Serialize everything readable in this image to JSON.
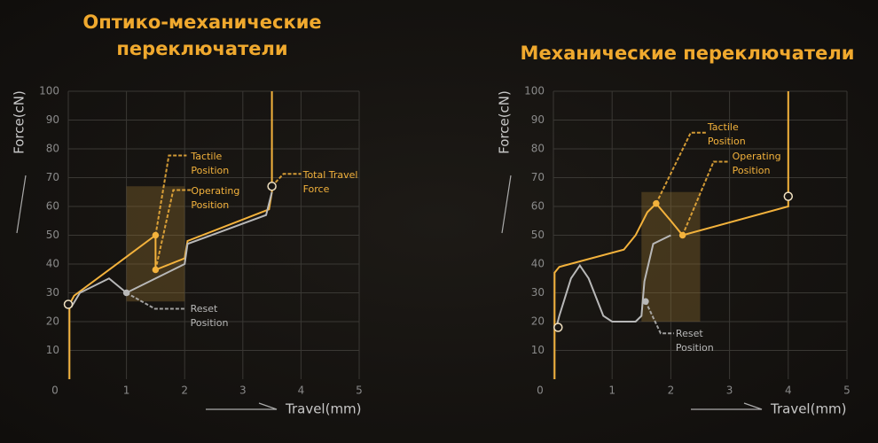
{
  "charts": [
    {
      "type": "line",
      "title": "Оптико-механические переключатели",
      "ylabel": "Force(cN)",
      "xlabel": "Travel(mm)",
      "xlim": [
        0,
        5
      ],
      "ylim": [
        0,
        100
      ],
      "xticks": [
        0,
        1,
        2,
        3,
        4,
        5
      ],
      "yticks": [
        10,
        20,
        30,
        40,
        50,
        60,
        70,
        80,
        90,
        100
      ],
      "grid": true,
      "highlight": {
        "x": [
          1,
          2
        ],
        "y": [
          27,
          67
        ]
      },
      "series": [
        {
          "color": "#f3b23c",
          "x": [
            0.02,
            0.02,
            0.1,
            1.5,
            1.5,
            2.0,
            2.05,
            3.45,
            3.5,
            3.5
          ],
          "values": [
            0,
            26,
            29,
            50,
            38,
            42,
            48,
            59,
            65,
            100
          ]
        },
        {
          "color": "#b8b8b8",
          "x": [
            0.05,
            0.2,
            0.7,
            1.0,
            2.0,
            2.05,
            3.4,
            3.5
          ],
          "values": [
            25,
            30,
            35,
            30,
            40,
            47,
            57,
            65
          ]
        }
      ],
      "annotations": [
        {
          "text": "Tactile Position",
          "x": 1.5,
          "y": 50,
          "marker": "filled",
          "color": "#f3b23c"
        },
        {
          "text": "Operating Position",
          "x": 1.5,
          "y": 38,
          "marker": "filled",
          "color": "#f3b23c"
        },
        {
          "text": "Reset Position",
          "x": 1.0,
          "y": 30,
          "marker": "filled",
          "color": "#b8b8b8"
        },
        {
          "text": "Total Travel Force",
          "x": 3.5,
          "y": 67,
          "marker": "open",
          "color": "#f3b23c"
        },
        {
          "x": 0,
          "y": 26,
          "marker": "open",
          "color": "#f3b23c"
        }
      ]
    },
    {
      "type": "line",
      "title": "Механические переключатели",
      "ylabel": "Force(cN)",
      "xlabel": "Travel(mm)",
      "xlim": [
        0,
        5
      ],
      "ylim": [
        0,
        100
      ],
      "xticks": [
        0,
        1,
        2,
        3,
        4,
        5
      ],
      "yticks": [
        10,
        20,
        30,
        40,
        50,
        60,
        70,
        80,
        90,
        100
      ],
      "grid": true,
      "highlight": {
        "x": [
          1.5,
          2.5
        ],
        "y": [
          20,
          65
        ]
      },
      "series": [
        {
          "color": "#f3b23c",
          "x": [
            0.02,
            0.02,
            0.1,
            1.2,
            1.4,
            1.6,
            1.75,
            2.0,
            2.2,
            4.0,
            4.0
          ],
          "values": [
            0,
            37,
            39,
            45,
            50,
            58,
            61,
            55,
            50,
            60,
            100
          ]
        },
        {
          "color": "#b8b8b8",
          "x": [
            0.05,
            0.1,
            0.3,
            0.45,
            0.6,
            0.85,
            1.0,
            1.4,
            1.5,
            1.55,
            1.7,
            2.0
          ],
          "values": [
            18,
            22,
            35,
            39.5,
            35,
            22,
            20,
            20,
            22,
            34,
            47,
            50
          ]
        }
      ],
      "annotations": [
        {
          "text": "Tactile Position",
          "x": 1.75,
          "y": 61,
          "marker": "filled",
          "color": "#f3b23c"
        },
        {
          "text": "Operating Position",
          "x": 2.2,
          "y": 50,
          "marker": "filled",
          "color": "#f3b23c"
        },
        {
          "text": "Reset Position",
          "x": 1.57,
          "y": 27,
          "marker": "filled",
          "color": "#b8b8b8"
        },
        {
          "x": 4.0,
          "y": 63.5,
          "marker": "open",
          "color": "#f3b23c"
        },
        {
          "x": 0.08,
          "y": 18,
          "marker": "open",
          "color": "#f3b23c"
        }
      ]
    }
  ]
}
